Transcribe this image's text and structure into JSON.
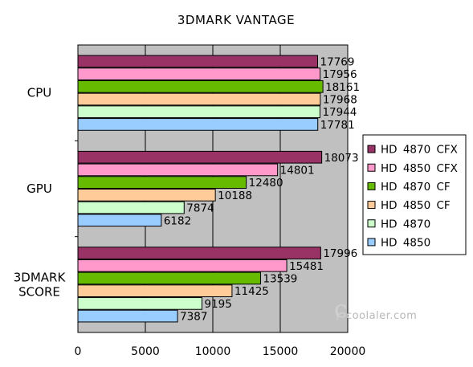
{
  "chart_data": {
    "type": "bar",
    "orientation": "horizontal",
    "title": "3DMARK  VANTAGE",
    "categories": [
      "CPU",
      "GPU",
      "3DMARK SCORE"
    ],
    "category_lines": [
      [
        "CPU"
      ],
      [
        "GPU"
      ],
      [
        "3DMARK",
        "SCORE"
      ]
    ],
    "series": [
      {
        "name": "HD  4870  CFX",
        "color": "#993366",
        "values": [
          17769,
          18073,
          17996
        ]
      },
      {
        "name": "HD  4850  CFX",
        "color": "#ff99cc",
        "values": [
          17956,
          14801,
          15481
        ]
      },
      {
        "name": "HD  4870  CF",
        "color": "#66bb00",
        "values": [
          18161,
          12480,
          13539
        ]
      },
      {
        "name": "HD  4850  CF",
        "color": "#ffcc99",
        "values": [
          17968,
          10188,
          11425
        ]
      },
      {
        "name": "HD  4870",
        "color": "#ccffcc",
        "values": [
          17944,
          7874,
          9195
        ]
      },
      {
        "name": "HD  4850",
        "color": "#99ccff",
        "values": [
          17781,
          6182,
          7387
        ]
      }
    ],
    "xlim": [
      0,
      20000
    ],
    "xticks": [
      0,
      5000,
      10000,
      15000,
      20000
    ],
    "xlabel": "",
    "ylabel": "",
    "grid": true,
    "plot_background": "#c0c0c0",
    "legend_position": "right",
    "data_labels": true
  },
  "watermark": {
    "text": "coolaler.com"
  }
}
